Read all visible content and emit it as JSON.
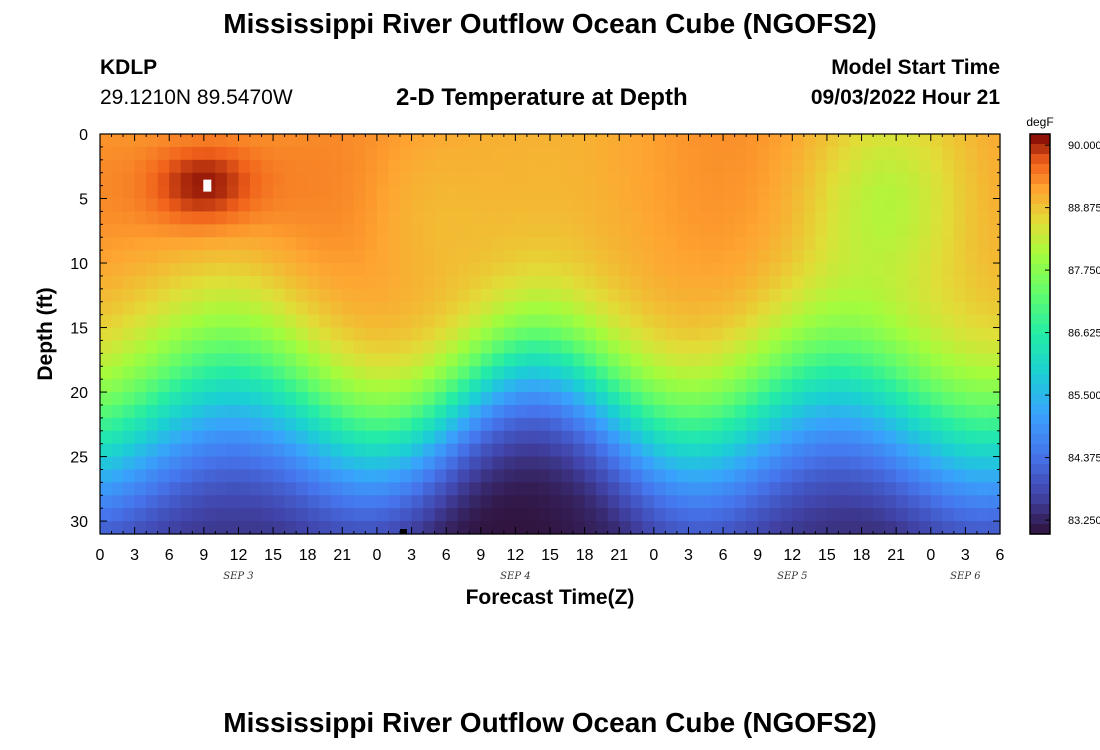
{
  "header": {
    "title": "Mississippi River Outflow Ocean Cube (NGOFS2)",
    "station_id": "KDLP",
    "station_coords": "29.1210N  89.5470W",
    "plot_title": "2-D Temperature at Depth",
    "model_start_label": "Model Start Time",
    "model_start_value": "09/03/2022 Hour 21"
  },
  "footer": {
    "title": "Mississippi River Outflow Ocean Cube (NGOFS2)"
  },
  "chart_data": {
    "type": "heatmap",
    "title": "2-D Temperature at Depth",
    "xlabel": "Forecast Time(Z)",
    "ylabel": "Depth (ft)",
    "x_tick_labels": [
      "0",
      "3",
      "6",
      "9",
      "12",
      "15",
      "18",
      "21",
      "0",
      "3",
      "6",
      "9",
      "12",
      "15",
      "18",
      "21",
      "0",
      "3",
      "6",
      "9",
      "12",
      "15",
      "18",
      "21",
      "0",
      "3",
      "6"
    ],
    "x_range_hours": [
      0,
      78
    ],
    "date_labels": [
      {
        "text": "SEP 3",
        "hour": 12
      },
      {
        "text": "SEP 4",
        "hour": 36
      },
      {
        "text": "SEP 5",
        "hour": 60
      },
      {
        "text": "SEP 6",
        "hour": 75
      }
    ],
    "y_ticks": [
      0,
      5,
      10,
      15,
      20,
      25,
      30
    ],
    "y_range_ft": [
      0,
      31
    ],
    "colorbar": {
      "unit": "degF",
      "ticks": [
        "90.000",
        "88.875",
        "87.750",
        "86.625",
        "85.500",
        "84.375",
        "83.250"
      ],
      "range": [
        83.0,
        90.2
      ]
    },
    "description_of_field": {
      "surface_layer_degF": 89.2,
      "max_near_hour_9_depth_4": 90.0,
      "bottom_min_degF": 83.1,
      "thermocline_depth_ft": [
        15,
        25
      ]
    }
  }
}
